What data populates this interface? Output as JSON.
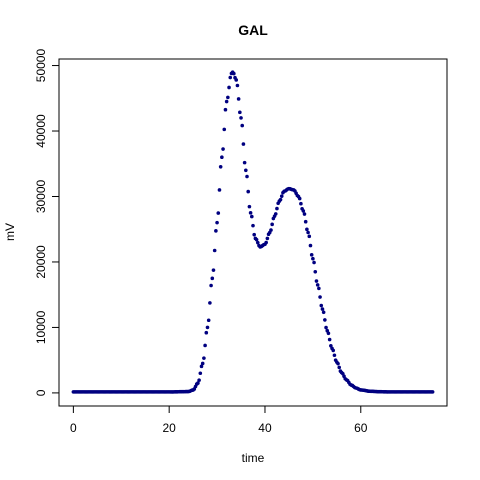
{
  "chart_data": {
    "type": "scatter",
    "title": "GAL",
    "xlabel": "time",
    "ylabel": "mV",
    "xlim": [
      -3,
      78
    ],
    "ylim": [
      -2000,
      51000
    ],
    "xticks": [
      0,
      20,
      40,
      60
    ],
    "yticks": [
      0,
      10000,
      20000,
      30000,
      40000,
      50000
    ],
    "xtick_labels": [
      "0",
      "20",
      "40",
      "60"
    ],
    "ytick_labels": [
      "0",
      "10000",
      "20000",
      "30000",
      "40000",
      "50000"
    ],
    "grid": false,
    "legend": "none",
    "point_color": "#000080",
    "sampling_interval": 0.25,
    "x_range": [
      0,
      75
    ],
    "series": [
      {
        "values_description": "dense points every 0.25 time units",
        "peaks": [
          {
            "x": 33.3,
            "y": 49000
          },
          {
            "x": 45.5,
            "y": 31200
          }
        ],
        "valley": {
          "x": 39.2,
          "y": 22300
        },
        "baseline": 150
      }
    ],
    "points": [
      [
        0,
        150
      ],
      [
        5,
        150
      ],
      [
        10,
        150
      ],
      [
        15,
        150
      ],
      [
        20,
        150
      ],
      [
        24,
        200
      ],
      [
        25,
        450
      ],
      [
        26,
        1500
      ],
      [
        27,
        4500
      ],
      [
        28,
        10000
      ],
      [
        29,
        17500
      ],
      [
        30,
        26000
      ],
      [
        31,
        36000
      ],
      [
        32,
        44500
      ],
      [
        33,
        48800
      ],
      [
        33.3,
        49000
      ],
      [
        34,
        47800
      ],
      [
        35,
        42000
      ],
      [
        36,
        34000
      ],
      [
        37,
        27500
      ],
      [
        38,
        23600
      ],
      [
        39,
        22300
      ],
      [
        40,
        22700
      ],
      [
        41,
        24500
      ],
      [
        42,
        27000
      ],
      [
        43,
        29300
      ],
      [
        44,
        30800
      ],
      [
        45,
        31200
      ],
      [
        46,
        31000
      ],
      [
        47,
        30000
      ],
      [
        48,
        27800
      ],
      [
        49,
        24500
      ],
      [
        50,
        20500
      ],
      [
        51,
        16500
      ],
      [
        52,
        12800
      ],
      [
        53,
        9500
      ],
      [
        54,
        6800
      ],
      [
        55,
        4700
      ],
      [
        56,
        3100
      ],
      [
        57,
        2000
      ],
      [
        58,
        1200
      ],
      [
        59,
        750
      ],
      [
        60,
        450
      ],
      [
        62,
        250
      ],
      [
        64,
        180
      ],
      [
        66,
        150
      ],
      [
        70,
        150
      ],
      [
        75,
        150
      ]
    ]
  }
}
